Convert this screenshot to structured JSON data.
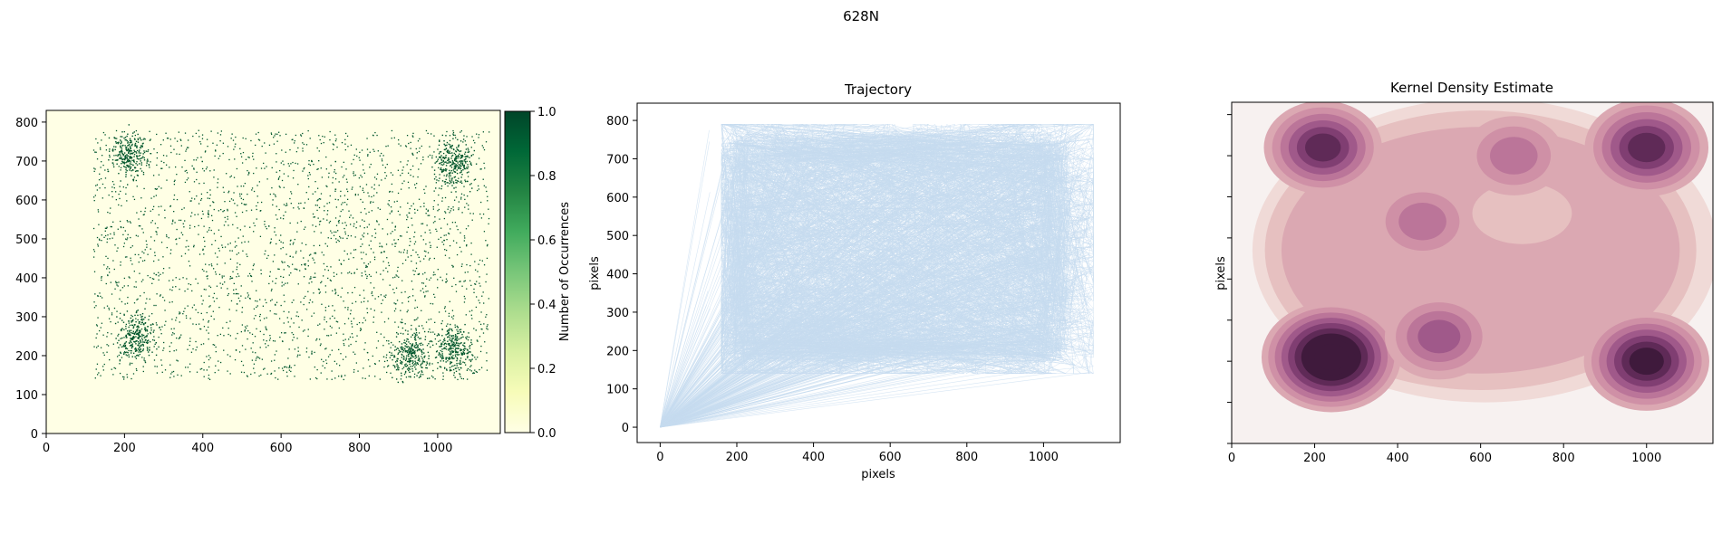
{
  "figure": {
    "title": "628N"
  },
  "chart_data": [
    {
      "type": "heatmap",
      "title": "",
      "xlabel": "",
      "ylabel": "",
      "xlim": [
        0,
        1160
      ],
      "ylim": [
        0,
        830
      ],
      "xticks": [
        "0",
        "200",
        "400",
        "600",
        "800",
        "1000"
      ],
      "yticks": [
        "0",
        "100",
        "200",
        "300",
        "400",
        "500",
        "600",
        "700",
        "800"
      ],
      "colorbar": {
        "label": "Number of Occurrences",
        "range": [
          0.0,
          1.0
        ],
        "ticks": [
          "0.0",
          "0.2",
          "0.4",
          "0.6",
          "0.8",
          "1.0"
        ],
        "colors": [
          "#ffffe5",
          "#f7fcb9",
          "#d9f0a3",
          "#addd8e",
          "#78c679",
          "#41ab5d",
          "#238443",
          "#006837",
          "#004529"
        ]
      },
      "background_color": "#ffffe5",
      "point_color": "#00562c",
      "points_region": {
        "x": [
          120,
          1130
        ],
        "y": [
          130,
          800
        ]
      },
      "dense_clusters": [
        {
          "x": 210,
          "y": 720
        },
        {
          "x": 230,
          "y": 250
        },
        {
          "x": 1040,
          "y": 700
        },
        {
          "x": 1040,
          "y": 220
        },
        {
          "x": 930,
          "y": 200
        }
      ]
    },
    {
      "type": "line",
      "title": "Trajectory",
      "xlabel": "pixels",
      "ylabel": "pixels",
      "xlim": [
        -60,
        1200
      ],
      "ylim": [
        -40,
        845
      ],
      "xticks": [
        "0",
        "200",
        "400",
        "600",
        "800",
        "1000"
      ],
      "yticks": [
        "0",
        "100",
        "200",
        "300",
        "400",
        "500",
        "600",
        "700",
        "800"
      ],
      "line_color": "#c6dbef",
      "series_region": {
        "x": [
          120,
          1130
        ],
        "y": [
          140,
          790
        ]
      },
      "origin_point": {
        "x": 0,
        "y": 0
      }
    },
    {
      "type": "heatmap",
      "title": "Kernel Density Estimate",
      "xlabel": "",
      "ylabel": "pixels",
      "xlim": [
        0,
        1160
      ],
      "ylim": [
        0,
        830
      ],
      "xticks": [
        "0",
        "200",
        "400",
        "600",
        "800",
        "1000"
      ],
      "yticks": [
        "",
        "",
        "",
        "",
        "",
        "",
        "",
        "",
        ""
      ],
      "colors": [
        "#f7f1f0",
        "#f0dad7",
        "#e6c0c0",
        "#dba8b2",
        "#cf90a6",
        "#bb7599",
        "#a0598a",
        "#803e72",
        "#5f2a57",
        "#3f1a3c"
      ],
      "modes": [
        {
          "x": 240,
          "y": 210,
          "weight": 1.0
        },
        {
          "x": 1000,
          "y": 200,
          "weight": 0.75
        },
        {
          "x": 1000,
          "y": 720,
          "weight": 0.72
        },
        {
          "x": 220,
          "y": 720,
          "weight": 0.62
        },
        {
          "x": 500,
          "y": 260,
          "weight": 0.45
        },
        {
          "x": 460,
          "y": 540,
          "weight": 0.3
        },
        {
          "x": 680,
          "y": 700,
          "weight": 0.3
        }
      ]
    }
  ]
}
